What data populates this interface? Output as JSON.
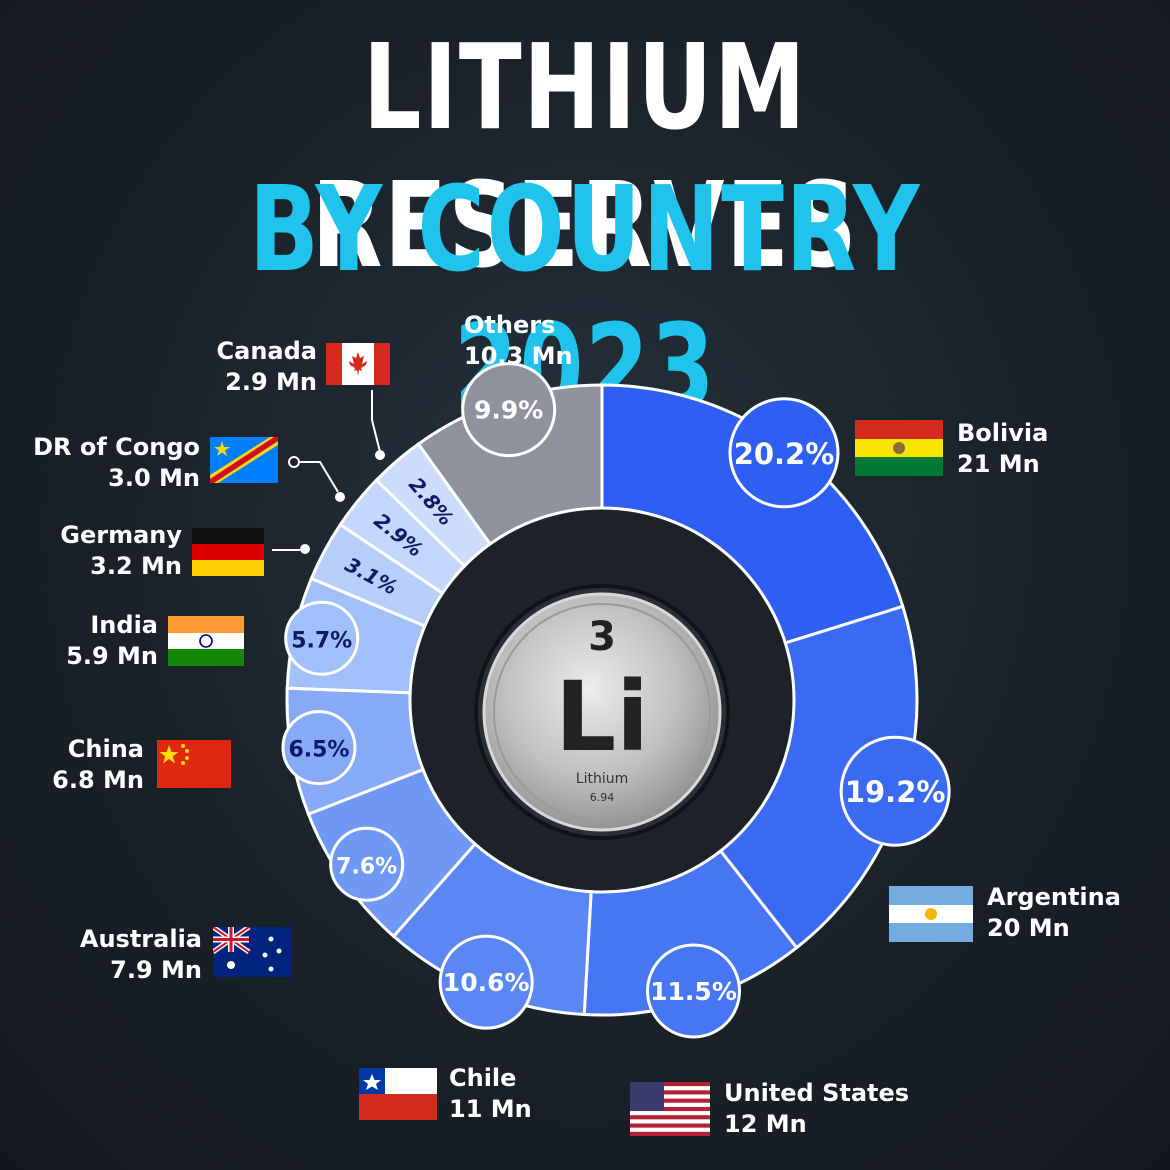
{
  "title": {
    "line1": "LITHIUM RESERVES",
    "line2": "BY COUNTRY 2023",
    "line1_color": "#ffffff",
    "line2_color": "#1fc3ec"
  },
  "element_badge": {
    "atomic_number": "3",
    "symbol": "Li",
    "name": "Lithium",
    "atomic_mass": "6.94"
  },
  "chart_data": {
    "type": "donut",
    "title": "LITHIUM RESERVES BY COUNTRY 2023",
    "unit": "Mn",
    "slices": [
      {
        "name": "Bolivia",
        "value_label": "21 Mn",
        "value": 21,
        "percent": 20.2,
        "percent_label": "20.2%",
        "color": "#2f5ff2",
        "flag": "bolivia-flag"
      },
      {
        "name": "Argentina",
        "value_label": "20 Mn",
        "value": 20,
        "percent": 19.2,
        "percent_label": "19.2%",
        "color": "#3a69f2",
        "flag": "argentina-flag"
      },
      {
        "name": "United States",
        "value_label": "12 Mn",
        "value": 12,
        "percent": 11.5,
        "percent_label": "11.5%",
        "color": "#4676f3",
        "flag": "usa-flag"
      },
      {
        "name": "Chile",
        "value_label": "11 Mn",
        "value": 11,
        "percent": 10.6,
        "percent_label": "10.6%",
        "color": "#5a87f4",
        "flag": "chile-flag"
      },
      {
        "name": "Australia",
        "value_label": "7.9 Mn",
        "value": 7.9,
        "percent": 7.6,
        "percent_label": "7.6%",
        "color": "#6f98f5",
        "flag": "australia-flag"
      },
      {
        "name": "China",
        "value_label": "6.8 Mn",
        "value": 6.8,
        "percent": 6.5,
        "percent_label": "6.5%",
        "color": "#86aaf7",
        "flag": "china-flag"
      },
      {
        "name": "India",
        "value_label": "5.9 Mn",
        "value": 5.9,
        "percent": 5.7,
        "percent_label": "5.7%",
        "color": "#a1bff9",
        "flag": "india-flag"
      },
      {
        "name": "Germany",
        "value_label": "3.2 Mn",
        "value": 3.2,
        "percent": 3.1,
        "percent_label": "3.1%",
        "color": "#b8cefa",
        "flag": "germany-flag"
      },
      {
        "name": "DR of Congo",
        "value_label": "3.0 Mn",
        "value": 3.0,
        "percent": 2.9,
        "percent_label": "2.9%",
        "color": "#c3d6fb",
        "flag": "drc-flag"
      },
      {
        "name": "Canada",
        "value_label": "2.9 Mn",
        "value": 2.9,
        "percent": 2.8,
        "percent_label": "2.8%",
        "color": "#cddcfb",
        "flag": "canada-flag"
      },
      {
        "name": "Others",
        "value_label": "10.3 Mn",
        "value": 10.3,
        "percent": 9.9,
        "percent_label": "9.9%",
        "color": "#8f929d",
        "flag": ""
      }
    ]
  }
}
